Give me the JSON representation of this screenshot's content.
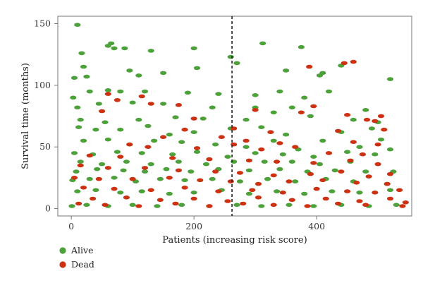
{
  "chart_data": {
    "type": "scatter",
    "xlabel": "Patients (increasing risk score)",
    "ylabel": "Survival time (months)",
    "xlim": [
      -22,
      555
    ],
    "ylim": [
      -6,
      156
    ],
    "xticks": [
      0,
      200,
      400
    ],
    "yticks": [
      0,
      50,
      100,
      150
    ],
    "grid": false,
    "legend_position": "bottom-left",
    "cutoff_x": 262,
    "colors": {
      "Alive": "#4da13a",
      "Dead": "#cc3212",
      "cutoff": "#222222"
    },
    "series": [
      {
        "name": "Alive",
        "points": [
          [
            10,
            149
          ],
          [
            65,
            134
          ],
          [
            60,
            132
          ],
          [
            70,
            130
          ],
          [
            87,
            130
          ],
          [
            130,
            128
          ],
          [
            17,
            126
          ],
          [
            200,
            130
          ],
          [
            312,
            134
          ],
          [
            375,
            131
          ],
          [
            260,
            123
          ],
          [
            440,
            116
          ],
          [
            405,
            108
          ],
          [
            410,
            110
          ],
          [
            20,
            115
          ],
          [
            5,
            106
          ],
          [
            25,
            107
          ],
          [
            95,
            112
          ],
          [
            110,
            108
          ],
          [
            150,
            110
          ],
          [
            205,
            114
          ],
          [
            350,
            112
          ],
          [
            270,
            118
          ],
          [
            3,
            90
          ],
          [
            30,
            95
          ],
          [
            60,
            96
          ],
          [
            80,
            95
          ],
          [
            120,
            95
          ],
          [
            190,
            94
          ],
          [
            240,
            93
          ],
          [
            300,
            92
          ],
          [
            340,
            95
          ],
          [
            380,
            90
          ],
          [
            420,
            95
          ],
          [
            520,
            105
          ],
          [
            10,
            82
          ],
          [
            45,
            85
          ],
          [
            100,
            86
          ],
          [
            150,
            85
          ],
          [
            230,
            82
          ],
          [
            300,
            82
          ],
          [
            360,
            82
          ],
          [
            480,
            80
          ],
          [
            15,
            72
          ],
          [
            55,
            70
          ],
          [
            110,
            72
          ],
          [
            170,
            74
          ],
          [
            215,
            73
          ],
          [
            285,
            72
          ],
          [
            330,
            78
          ],
          [
            390,
            75
          ],
          [
            460,
            72
          ],
          [
            500,
            70
          ],
          [
            12,
            66
          ],
          [
            40,
            64
          ],
          [
            80,
            64
          ],
          [
            125,
            67
          ],
          [
            160,
            60
          ],
          [
            200,
            62
          ],
          [
            260,
            65
          ],
          [
            310,
            66
          ],
          [
            350,
            60
          ],
          [
            440,
            62
          ],
          [
            490,
            65
          ],
          [
            505,
            56
          ],
          [
            20,
            55
          ],
          [
            60,
            56
          ],
          [
            95,
            52
          ],
          [
            135,
            55
          ],
          [
            180,
            54
          ],
          [
            235,
            52
          ],
          [
            285,
            50
          ],
          [
            330,
            55
          ],
          [
            370,
            48
          ],
          [
            410,
            55
          ],
          [
            470,
            50
          ],
          [
            520,
            48
          ],
          [
            5,
            45
          ],
          [
            35,
            44
          ],
          [
            75,
            46
          ],
          [
            115,
            45
          ],
          [
            165,
            44
          ],
          [
            205,
            46
          ],
          [
            255,
            42
          ],
          [
            300,
            45
          ],
          [
            345,
            44
          ],
          [
            395,
            42
          ],
          [
            450,
            46
          ],
          [
            495,
            44
          ],
          [
            15,
            38
          ],
          [
            50,
            36
          ],
          [
            90,
            38
          ],
          [
            130,
            36
          ],
          [
            175,
            38
          ],
          [
            220,
            36
          ],
          [
            265,
            38
          ],
          [
            315,
            38
          ],
          [
            360,
            38
          ],
          [
            405,
            36
          ],
          [
            455,
            38
          ],
          [
            8,
            30
          ],
          [
            42,
            32
          ],
          [
            85,
            31
          ],
          [
            120,
            30
          ],
          [
            155,
            32
          ],
          [
            195,
            30
          ],
          [
            240,
            32
          ],
          [
            290,
            31
          ],
          [
            340,
            32
          ],
          [
            385,
            30
          ],
          [
            430,
            31
          ],
          [
            480,
            30
          ],
          [
            525,
            30
          ],
          [
            2,
            23
          ],
          [
            30,
            24
          ],
          [
            70,
            25
          ],
          [
            105,
            22
          ],
          [
            145,
            24
          ],
          [
            185,
            23
          ],
          [
            230,
            24
          ],
          [
            275,
            22
          ],
          [
            320,
            24
          ],
          [
            365,
            22
          ],
          [
            415,
            24
          ],
          [
            460,
            22
          ],
          [
            515,
            20
          ],
          [
            10,
            14
          ],
          [
            40,
            15
          ],
          [
            80,
            13
          ],
          [
            115,
            14
          ],
          [
            160,
            12
          ],
          [
            200,
            13
          ],
          [
            245,
            15
          ],
          [
            290,
            12
          ],
          [
            335,
            14
          ],
          [
            380,
            12
          ],
          [
            425,
            14
          ],
          [
            470,
            13
          ],
          [
            520,
            15
          ],
          [
            1,
            2
          ],
          [
            25,
            3
          ],
          [
            60,
            2
          ],
          [
            100,
            3
          ],
          [
            140,
            2
          ],
          [
            180,
            3
          ],
          [
            225,
            2
          ],
          [
            270,
            3
          ],
          [
            310,
            2
          ],
          [
            355,
            3
          ],
          [
            395,
            2
          ],
          [
            440,
            3
          ],
          [
            485,
            2
          ],
          [
            530,
            3
          ]
        ]
      },
      {
        "name": "Dead",
        "points": [
          [
            460,
            119
          ],
          [
            445,
            118
          ],
          [
            388,
            115
          ],
          [
            60,
            93
          ],
          [
            115,
            91
          ],
          [
            75,
            88
          ],
          [
            130,
            85
          ],
          [
            175,
            84
          ],
          [
            395,
            83
          ],
          [
            375,
            78
          ],
          [
            300,
            80
          ],
          [
            50,
            79
          ],
          [
            200,
            73
          ],
          [
            450,
            76
          ],
          [
            505,
            75
          ],
          [
            482,
            72
          ],
          [
            495,
            71
          ],
          [
            265,
            65
          ],
          [
            185,
            64
          ],
          [
            325,
            62
          ],
          [
            435,
            63
          ],
          [
            510,
            64
          ],
          [
            150,
            58
          ],
          [
            245,
            58
          ],
          [
            285,
            55
          ],
          [
            340,
            53
          ],
          [
            460,
            54
          ],
          [
            500,
            52
          ],
          [
            95,
            52
          ],
          [
            125,
            50
          ],
          [
            205,
            49
          ],
          [
            265,
            52
          ],
          [
            310,
            48
          ],
          [
            365,
            50
          ],
          [
            420,
            45
          ],
          [
            475,
            44
          ],
          [
            30,
            43
          ],
          [
            80,
            42
          ],
          [
            165,
            41
          ],
          [
            225,
            40
          ],
          [
            290,
            39
          ],
          [
            335,
            38
          ],
          [
            395,
            37
          ],
          [
            455,
            39
          ],
          [
            500,
            36
          ],
          [
            15,
            35
          ],
          [
            60,
            33
          ],
          [
            120,
            33
          ],
          [
            175,
            31
          ],
          [
            235,
            30
          ],
          [
            275,
            29
          ],
          [
            330,
            27
          ],
          [
            390,
            28
          ],
          [
            440,
            30
          ],
          [
            485,
            26
          ],
          [
            520,
            28
          ],
          [
            5,
            25
          ],
          [
            45,
            24
          ],
          [
            100,
            24
          ],
          [
            160,
            25
          ],
          [
            210,
            23
          ],
          [
            260,
            22
          ],
          [
            305,
            20
          ],
          [
            355,
            22
          ],
          [
            410,
            23
          ],
          [
            465,
            21
          ],
          [
            515,
            20
          ],
          [
            20,
            17
          ],
          [
            70,
            16
          ],
          [
            130,
            15
          ],
          [
            185,
            17
          ],
          [
            240,
            14
          ],
          [
            295,
            15
          ],
          [
            345,
            13
          ],
          [
            400,
            16
          ],
          [
            450,
            14
          ],
          [
            495,
            13
          ],
          [
            535,
            15
          ],
          [
            35,
            8
          ],
          [
            90,
            9
          ],
          [
            145,
            7
          ],
          [
            200,
            8
          ],
          [
            255,
            6
          ],
          [
            305,
            9
          ],
          [
            360,
            7
          ],
          [
            415,
            8
          ],
          [
            470,
            6
          ],
          [
            520,
            8
          ],
          [
            12,
            4
          ],
          [
            55,
            3
          ],
          [
            110,
            2
          ],
          [
            170,
            4
          ],
          [
            225,
            2
          ],
          [
            280,
            4
          ],
          [
            330,
            3
          ],
          [
            385,
            2
          ],
          [
            435,
            4
          ],
          [
            480,
            3
          ],
          [
            540,
            2
          ],
          [
            545,
            5
          ]
        ]
      }
    ]
  }
}
